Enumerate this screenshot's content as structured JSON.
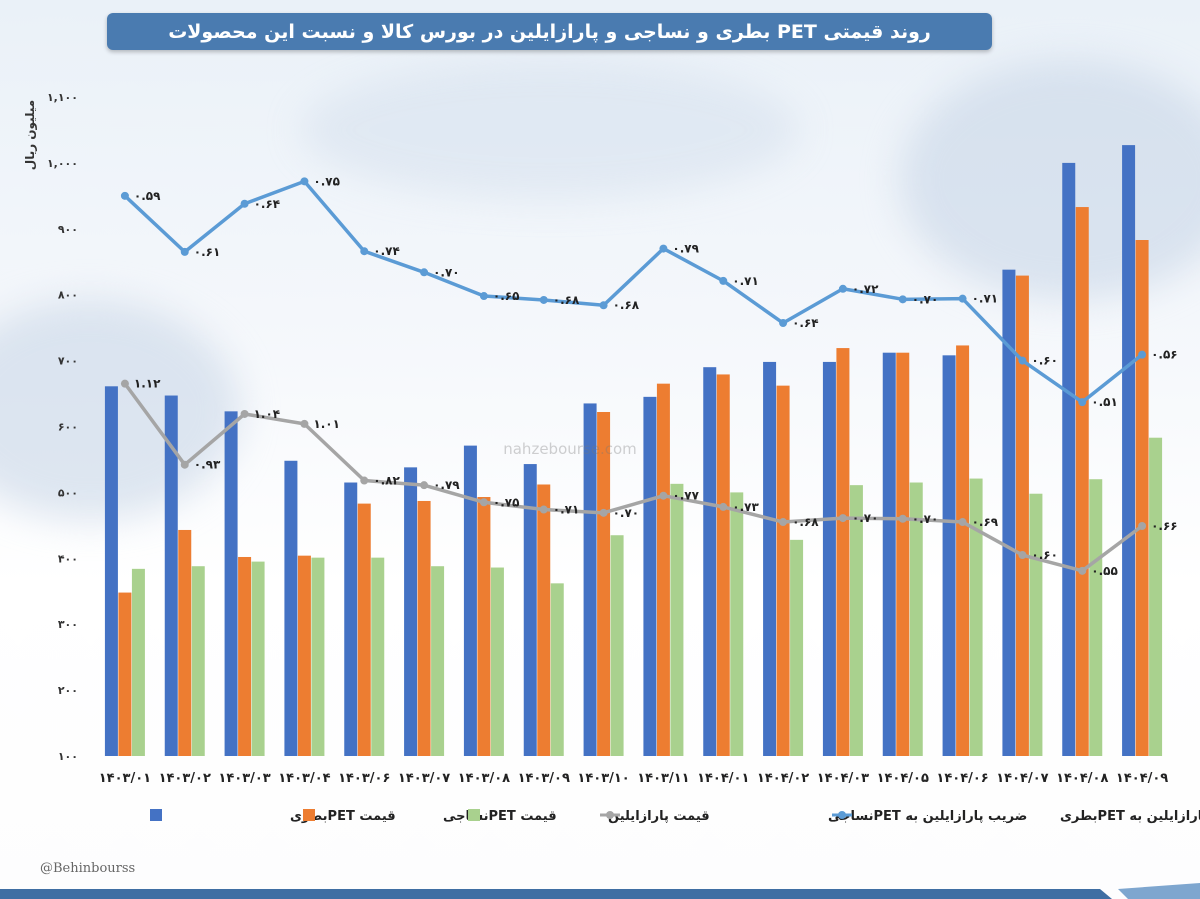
{
  "title": "روند قیمتی PET بطری و نساجی و پارازایلین در بورس کالا و نسبت این محصولات",
  "handle": "@Behinbourss",
  "watermark_site": "nahzebourse.com",
  "colors": {
    "bottle": "#4472c4",
    "textile": "#ed7d31",
    "px": "#a9d18e",
    "ratio_textile": "#a5a5a5",
    "ratio_bottle": "#5b9bd5",
    "title_bg": "#4a7bb0"
  },
  "chart_data": {
    "type": "bar",
    "ylabel": "میلیون ریال",
    "ylim": [
      100,
      1100
    ],
    "yticks": [
      "۱۰۰",
      "۲۰۰",
      "۳۰۰",
      "۴۰۰",
      "۵۰۰",
      "۶۰۰",
      "۷۰۰",
      "۸۰۰",
      "۹۰۰",
      "۱,۰۰۰",
      "۱,۱۰۰"
    ],
    "categories": [
      "۱۴۰۳/۰۱",
      "۱۴۰۳/۰۲",
      "۱۴۰۳/۰۳",
      "۱۴۰۳/۰۴",
      "۱۴۰۳/۰۶",
      "۱۴۰۳/۰۷",
      "۱۴۰۳/۰۸",
      "۱۴۰۳/۰۹",
      "۱۴۰۳/۱۰",
      "۱۴۰۳/۱۱",
      "۱۴۰۴/۰۱",
      "۱۴۰۴/۰۲",
      "۱۴۰۴/۰۳",
      "۱۴۰۴/۰۵",
      "۱۴۰۴/۰۶",
      "۱۴۰۴/۰۷",
      "۱۴۰۴/۰۸",
      "۱۴۰۴/۰۹"
    ],
    "series": [
      {
        "name": "قیمت PETبطری",
        "kind": "bar",
        "values": [
          661,
          647,
          623,
          548,
          515,
          538,
          571,
          543,
          635,
          645,
          690,
          698,
          698,
          712,
          708,
          838,
          1000,
          1027
        ]
      },
      {
        "name": "قیمت PETنساجی",
        "kind": "bar",
        "values": [
          348,
          443,
          402,
          404,
          483,
          487,
          493,
          512,
          622,
          665,
          679,
          662,
          719,
          712,
          723,
          829,
          933,
          883
        ]
      },
      {
        "name": "قیمت پارازایلین",
        "kind": "bar",
        "values": [
          384,
          388,
          395,
          401,
          401,
          388,
          386,
          362,
          435,
          513,
          500,
          428,
          511,
          515,
          521,
          498,
          520,
          583
        ]
      },
      {
        "name": "ضریب پارازایلین به PETنساجی",
        "kind": "line",
        "values": [
          665,
          542,
          619,
          604,
          518,
          511,
          485,
          474,
          469,
          495,
          478,
          455,
          461,
          460,
          455,
          405,
          381,
          449
        ],
        "labels": [
          "۱.۱۲",
          "۰.۹۳",
          "۱.۰۴",
          "۱.۰۱",
          "۰.۸۲",
          "۰.۷۹",
          "۰.۷۵",
          "۰.۷۱",
          "۰.۷۰",
          "۰.۷۷",
          "۰.۷۳",
          "۰.۶۸",
          "۰.۷۰",
          "۰.۷۰",
          "۰.۶۹",
          "۰.۶۰",
          "۰.۵۵",
          "۰.۶۶"
        ]
      },
      {
        "name": "ضریب پارازایلین به PETبطری",
        "kind": "line",
        "values": [
          950,
          865,
          938,
          972,
          866,
          834,
          798,
          792,
          784,
          870,
          821,
          757,
          809,
          793,
          794,
          700,
          637,
          709
        ],
        "labels": [
          "۰.۵۹",
          "۰.۶۱",
          "۰.۶۴",
          "۰.۷۵",
          "۰.۷۴",
          "۰.۷۰",
          "۰.۶۵",
          "۰.۶۸",
          "۰.۶۸",
          "۰.۷۹",
          "۰.۷۱",
          "۰.۶۴",
          "۰.۷۲",
          "۰.۷۰",
          "۰.۷۱",
          "۰.۶۰",
          "۰.۵۱",
          "۰.۵۶"
        ]
      }
    ],
    "legend_position": "bottom",
    "grid": false
  }
}
